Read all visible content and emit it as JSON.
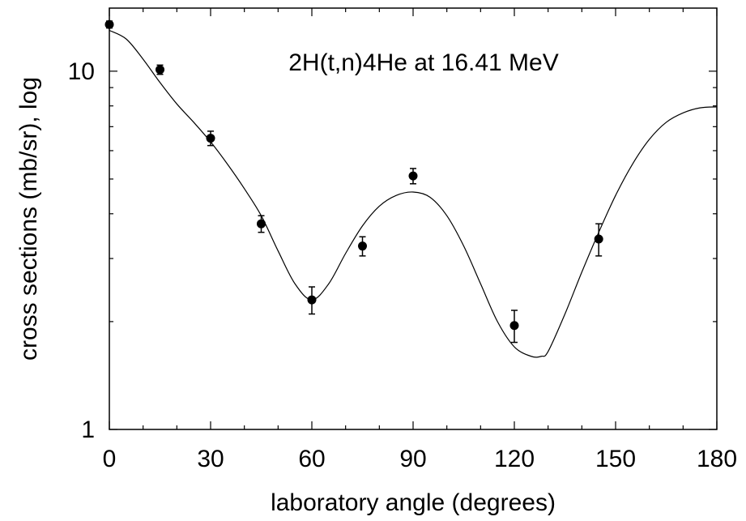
{
  "chart_data": {
    "type": "scatter",
    "annotation": "2H(t,n)4He at 16.41 MeV",
    "xlabel": "laboratory angle (degrees)",
    "ylabel": "cross sections (mb/sr), log",
    "xlim": [
      0,
      180
    ],
    "ylim": [
      1,
      15
    ],
    "yscale": "log",
    "grid": false,
    "x_ticks": [
      0,
      30,
      60,
      90,
      120,
      150,
      180
    ],
    "x_tick_labels": [
      "0",
      "30",
      "60",
      "90",
      "120",
      "150",
      "180"
    ],
    "y_tick_labels": [
      {
        "value": 1,
        "label": "1"
      },
      {
        "value": 10,
        "label": "10"
      }
    ],
    "series": [
      {
        "kind": "points",
        "x": [
          0,
          15,
          30,
          45,
          60,
          75,
          90,
          120,
          145
        ],
        "y": [
          13.5,
          10.1,
          6.5,
          3.75,
          2.3,
          3.25,
          5.1,
          1.95,
          3.4
        ],
        "err": [
          0.3,
          0.3,
          0.3,
          0.2,
          0.2,
          0.2,
          0.25,
          0.2,
          0.35
        ]
      },
      {
        "kind": "fit-curve",
        "x": [
          0,
          5,
          10,
          15,
          20,
          25,
          30,
          35,
          40,
          45,
          50,
          55,
          60,
          65,
          70,
          75,
          80,
          85,
          90,
          95,
          100,
          105,
          110,
          115,
          120,
          125,
          128,
          130,
          135,
          140,
          145,
          150,
          155,
          160,
          165,
          170,
          175,
          180
        ],
        "y": [
          13.0,
          12.3,
          10.8,
          9.3,
          8.1,
          7.2,
          6.35,
          5.5,
          4.7,
          3.95,
          3.15,
          2.55,
          2.3,
          2.55,
          3.1,
          3.7,
          4.2,
          4.5,
          4.6,
          4.45,
          3.95,
          3.25,
          2.55,
          2.0,
          1.7,
          1.6,
          1.6,
          1.65,
          2.1,
          2.75,
          3.55,
          4.5,
          5.5,
          6.45,
          7.2,
          7.65,
          7.9,
          7.95
        ]
      }
    ]
  }
}
